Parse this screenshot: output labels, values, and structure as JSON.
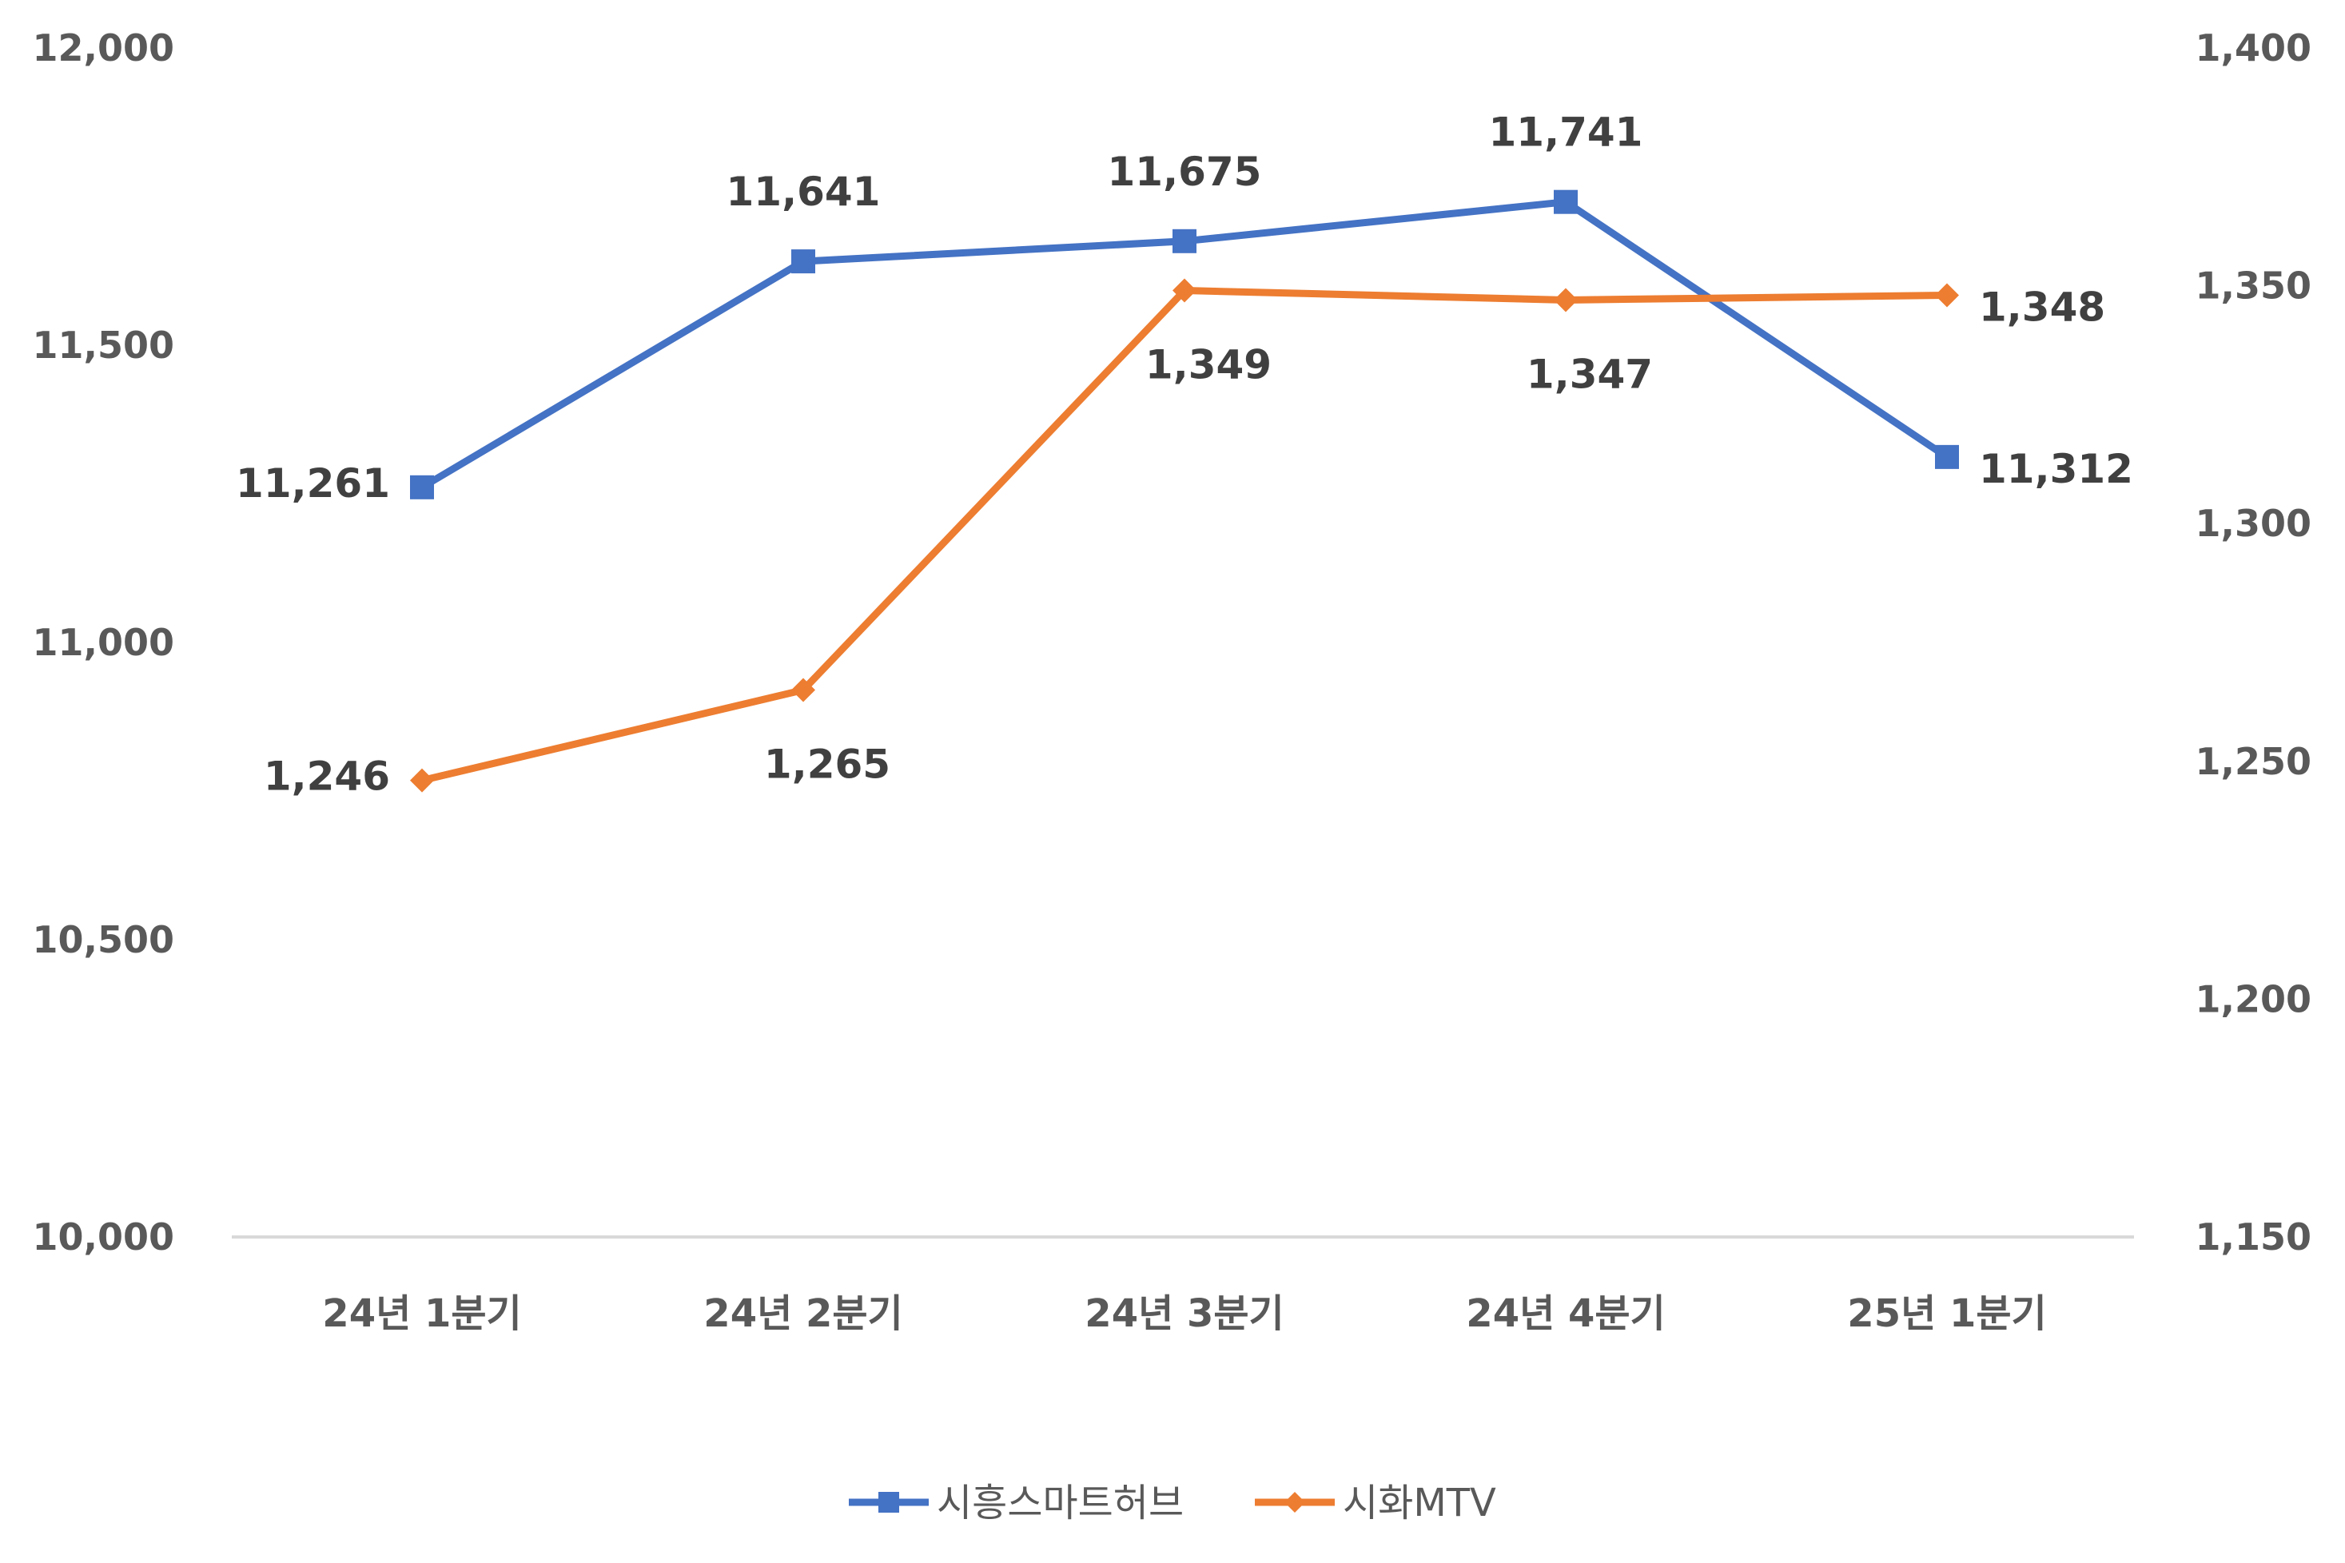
{
  "chart_data": {
    "type": "line",
    "categories": [
      "24년 1분기",
      "24년 2분기",
      "24년 3분기",
      "24년 4분기",
      "25년 1분기"
    ],
    "series": [
      {
        "name": "시흥스마트허브",
        "axis": "left",
        "marker": "square",
        "color": "#4472C4",
        "values": [
          11261,
          11641,
          11675,
          11741,
          11312
        ],
        "labels": [
          "11,261",
          "11,641",
          "11,675",
          "11,741",
          "11,312"
        ],
        "label_positions": [
          "left",
          "above",
          "above",
          "above",
          "right"
        ]
      },
      {
        "name": "시화MTV",
        "axis": "right",
        "marker": "diamond",
        "color": "#ED7D31",
        "values": [
          1246,
          1265,
          1349,
          1347,
          1348
        ],
        "labels": [
          "1,246",
          "1,265",
          "1,349",
          "1,347",
          "1,348"
        ],
        "label_positions": [
          "left",
          "below",
          "below",
          "below",
          "right"
        ]
      }
    ],
    "y_left": {
      "ylim": [
        10000,
        12000
      ],
      "ticks": [
        12000,
        11500,
        11000,
        10500,
        10000
      ],
      "tick_labels": [
        "12,000",
        "11,500",
        "11,000",
        "10,500",
        "10,000"
      ]
    },
    "y_right": {
      "ylim": [
        1150,
        1400
      ],
      "ticks": [
        1400,
        1350,
        1300,
        1250,
        1200,
        1150
      ],
      "tick_labels": [
        "1,400",
        "1,350",
        "1,300",
        "1,250",
        "1,200",
        "1,150"
      ]
    },
    "grid": false,
    "legend": "bottom"
  }
}
